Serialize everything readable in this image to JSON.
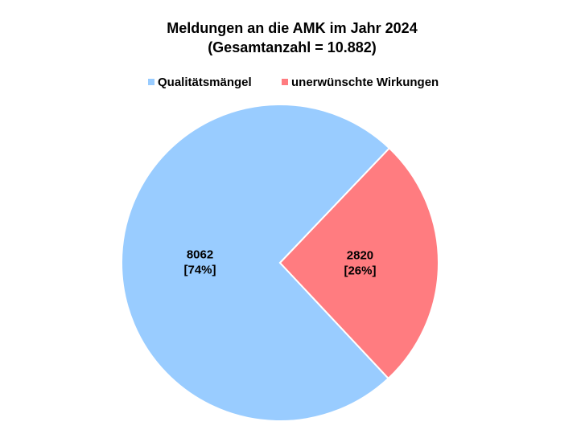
{
  "chart_data": {
    "type": "pie",
    "title": [
      "Meldungen an die AMK im Jahr 2024",
      "(Gesamtanzahl = 10.882)"
    ],
    "categories": [
      "Qualitätsmängel",
      "unerwünschte Wirkungen"
    ],
    "values": [
      8062,
      2820
    ],
    "value_labels": [
      [
        "8062",
        "[74%]"
      ],
      [
        "2820",
        "[26%]"
      ]
    ],
    "colors": [
      "#99ccff",
      "#ff7c80"
    ],
    "legend": "top"
  }
}
